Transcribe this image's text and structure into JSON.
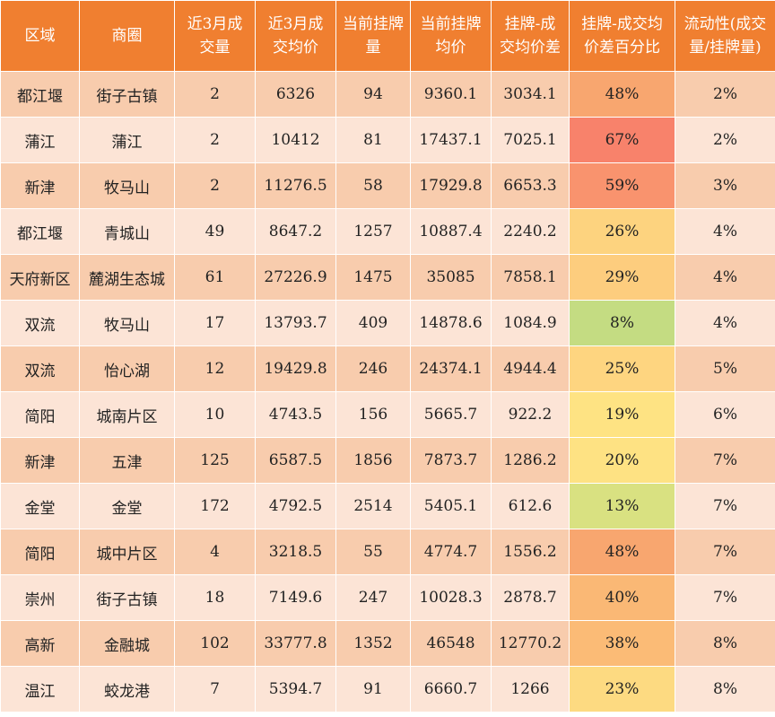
{
  "headers": [
    [
      "区域"
    ],
    [
      "商圈"
    ],
    [
      "近3月成",
      "交量"
    ],
    [
      "近3月成",
      "交均价"
    ],
    [
      "当前挂牌",
      "量"
    ],
    [
      "当前挂牌",
      "均价"
    ],
    [
      "挂牌-成",
      "交均价差"
    ],
    [
      "挂牌-成交均",
      "价差百分比"
    ],
    [
      "流动性(成交",
      "量/挂牌量)"
    ]
  ],
  "rows": [
    {
      "region": "都江堰",
      "area": "街子古镇",
      "deals": "2",
      "deal_price": "6326",
      "listings": "94",
      "list_price": "9360.1",
      "diff": "3034.1",
      "diff_pct": "48%",
      "pct_color": "#f8a66f",
      "liquidity": "2%"
    },
    {
      "region": "蒲江",
      "area": "蒲江",
      "deals": "2",
      "deal_price": "10412",
      "listings": "81",
      "list_price": "17437.1",
      "diff": "7025.1",
      "diff_pct": "67%",
      "pct_color": "#f8826b",
      "liquidity": "2%"
    },
    {
      "region": "新津",
      "area": "牧马山",
      "deals": "2",
      "deal_price": "11276.5",
      "listings": "58",
      "list_price": "17929.8",
      "diff": "6653.3",
      "diff_pct": "59%",
      "pct_color": "#f9936e",
      "liquidity": "3%"
    },
    {
      "region": "都江堰",
      "area": "青城山",
      "deals": "49",
      "deal_price": "8647.2",
      "listings": "1257",
      "list_price": "10887.4",
      "diff": "2240.2",
      "diff_pct": "26%",
      "pct_color": "#fdd37f",
      "liquidity": "4%"
    },
    {
      "region": "天府新区",
      "area": "麓湖生态城",
      "deals": "61",
      "deal_price": "27226.9",
      "listings": "1475",
      "list_price": "35085",
      "diff": "7858.1",
      "diff_pct": "29%",
      "pct_color": "#fdcd7e",
      "liquidity": "4%"
    },
    {
      "region": "双流",
      "area": "牧马山",
      "deals": "17",
      "deal_price": "13793.7",
      "listings": "409",
      "list_price": "14878.6",
      "diff": "1084.9",
      "diff_pct": "8%",
      "pct_color": "#c4dc82",
      "liquidity": "4%"
    },
    {
      "region": "双流",
      "area": "怡心湖",
      "deals": "12",
      "deal_price": "19429.8",
      "listings": "246",
      "list_price": "24374.1",
      "diff": "4944.4",
      "diff_pct": "25%",
      "pct_color": "#fed580",
      "liquidity": "5%"
    },
    {
      "region": "简阳",
      "area": "城南片区",
      "deals": "10",
      "deal_price": "4743.5",
      "listings": "156",
      "list_price": "5665.7",
      "diff": "922.2",
      "diff_pct": "19%",
      "pct_color": "#fee383",
      "liquidity": "6%"
    },
    {
      "region": "新津",
      "area": "五津",
      "deals": "125",
      "deal_price": "6587.5",
      "listings": "1856",
      "list_price": "7873.7",
      "diff": "1286.2",
      "diff_pct": "20%",
      "pct_color": "#fee283",
      "liquidity": "7%"
    },
    {
      "region": "金堂",
      "area": "金堂",
      "deals": "172",
      "deal_price": "4792.5",
      "listings": "2514",
      "list_price": "5405.1",
      "diff": "612.6",
      "diff_pct": "13%",
      "pct_color": "#d9e181",
      "liquidity": "7%"
    },
    {
      "region": "简阳",
      "area": "城中片区",
      "deals": "4",
      "deal_price": "3218.5",
      "listings": "55",
      "list_price": "4774.7",
      "diff": "1556.2",
      "diff_pct": "48%",
      "pct_color": "#f8a66f",
      "liquidity": "7%"
    },
    {
      "region": "崇州",
      "area": "街子古镇",
      "deals": "18",
      "deal_price": "7149.6",
      "listings": "247",
      "list_price": "10028.3",
      "diff": "2878.7",
      "diff_pct": "40%",
      "pct_color": "#fab875",
      "liquidity": "7%"
    },
    {
      "region": "高新",
      "area": "金融城",
      "deals": "102",
      "deal_price": "33777.8",
      "listings": "1352",
      "list_price": "46548",
      "diff": "12770.2",
      "diff_pct": "38%",
      "pct_color": "#fbbb76",
      "liquidity": "8%"
    },
    {
      "region": "温江",
      "area": "蛟龙港",
      "deals": "7",
      "deal_price": "5394.7",
      "listings": "91",
      "list_price": "6660.7",
      "diff": "1266",
      "diff_pct": "23%",
      "pct_color": "#fdda81",
      "liquidity": "8%"
    }
  ]
}
